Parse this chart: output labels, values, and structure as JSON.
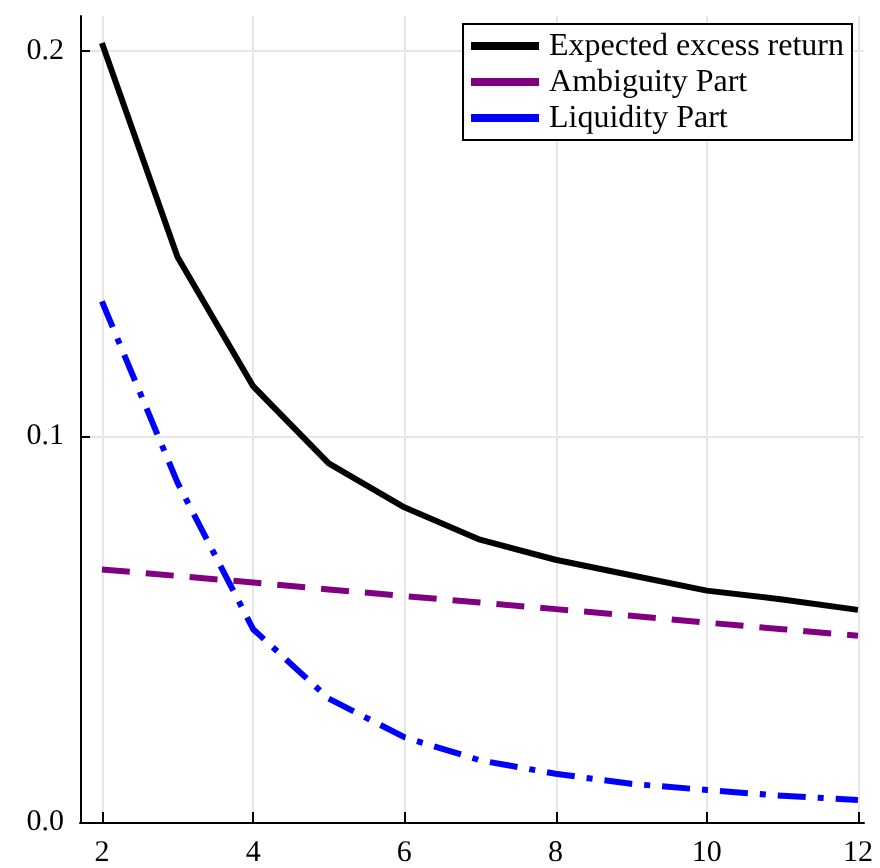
{
  "chart_data": {
    "type": "line",
    "x": [
      2,
      3,
      4,
      5,
      6,
      7,
      8,
      9,
      10,
      11,
      12
    ],
    "xlim": [
      1.71,
      12.08
    ],
    "xticks": [
      2,
      4,
      6,
      8,
      10,
      12
    ],
    "ylim": [
      0,
      0.209
    ],
    "yticks": [
      {
        "value": 0,
        "label": "0.0"
      },
      {
        "value": 0.1,
        "label": "0.1"
      },
      {
        "value": 0.2,
        "label": "0.2"
      }
    ],
    "grid": true,
    "legend": "top right",
    "marker": "none",
    "series": [
      {
        "name": "Expected excess return",
        "color": "#000000",
        "line_style": "solid",
        "values": [
          0.202,
          0.1465,
          0.113,
          0.093,
          0.0816,
          0.0732,
          0.068,
          0.064,
          0.06,
          0.0577,
          0.055
        ]
      },
      {
        "name": "Ambiguity Part",
        "color": "#800080",
        "line_style": "dashed",
        "values": [
          0.0655,
          0.0638,
          0.0621,
          0.0603,
          0.0586,
          0.0569,
          0.0552,
          0.0535,
          0.0517,
          0.05,
          0.0483
        ]
      },
      {
        "name": "Liquidity Part",
        "color": "#0000ff",
        "line_style": "dashdot",
        "values": [
          0.135,
          0.088,
          0.05,
          0.032,
          0.022,
          0.016,
          0.0125,
          0.0099,
          0.0083,
          0.0068,
          0.0057
        ]
      }
    ]
  }
}
